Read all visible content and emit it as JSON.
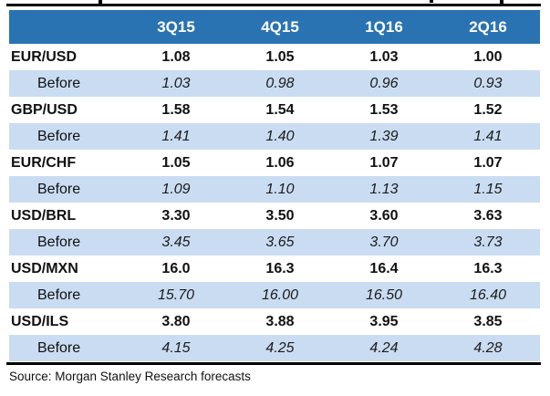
{
  "table": {
    "columns": [
      "3Q15",
      "4Q15",
      "1Q16",
      "2Q16"
    ],
    "before_label": "Before",
    "rows": [
      {
        "label": "EUR/USD",
        "values": [
          "1.08",
          "1.05",
          "1.03",
          "1.00"
        ],
        "before": [
          "1.03",
          "0.98",
          "0.96",
          "0.93"
        ]
      },
      {
        "label": "GBP/USD",
        "values": [
          "1.58",
          "1.54",
          "1.53",
          "1.52"
        ],
        "before": [
          "1.41",
          "1.40",
          "1.39",
          "1.41"
        ]
      },
      {
        "label": "EUR/CHF",
        "values": [
          "1.05",
          "1.06",
          "1.07",
          "1.07"
        ],
        "before": [
          "1.09",
          "1.10",
          "1.13",
          "1.15"
        ]
      },
      {
        "label": "USD/BRL",
        "values": [
          "3.30",
          "3.50",
          "3.60",
          "3.63"
        ],
        "before": [
          "3.45",
          "3.65",
          "3.70",
          "3.73"
        ]
      },
      {
        "label": "USD/MXN",
        "values": [
          "16.0",
          "16.3",
          "16.4",
          "16.3"
        ],
        "before": [
          "15.70",
          "16.00",
          "16.50",
          "16.40"
        ]
      },
      {
        "label": "USD/ILS",
        "values": [
          "3.80",
          "3.88",
          "3.95",
          "3.85"
        ],
        "before": [
          "4.15",
          "4.25",
          "4.24",
          "4.28"
        ]
      }
    ]
  },
  "source": "Source: Morgan Stanley Research forecasts",
  "colors": {
    "header_bg": "#2A73B2",
    "header_text": "#FFFFFF",
    "before_bg": "#C9DCF2",
    "rule": "#000000"
  }
}
